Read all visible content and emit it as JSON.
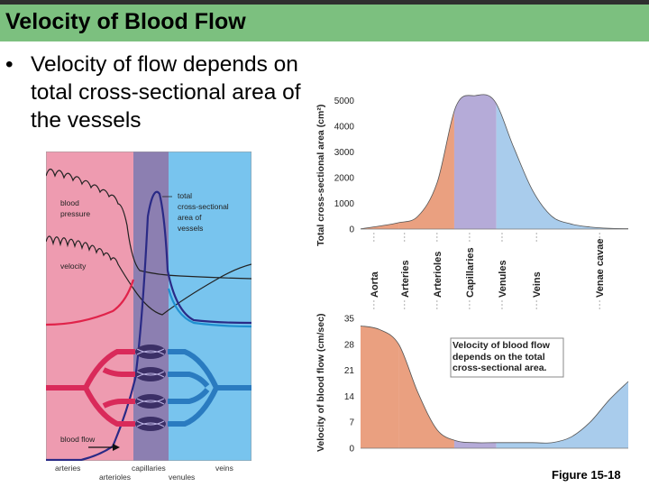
{
  "slide": {
    "title": "Velocity of Blood Flow",
    "bullet": "Velocity of flow depends on total cross-sectional area of the vessels",
    "figure_label": "Figure 15-18"
  },
  "left_diagram": {
    "labels": {
      "blood_pressure_1": "blood",
      "blood_pressure_2": "pressure",
      "velocity": "velocity",
      "tcsa_1": "total",
      "tcsa_2": "cross-sectional",
      "tcsa_3": "area of",
      "tcsa_4": "vessels",
      "blood_flow": "blood flow"
    },
    "bottom_labels": {
      "arteries": "arteries",
      "arterioles": "arterioles",
      "capillaries": "capillaries",
      "venules": "venules",
      "veins": "veins"
    },
    "colors": {
      "arterial": "#ee9bb0",
      "capillary": "#8c7fb1",
      "venous": "#78c4ee"
    }
  },
  "chart_data": [
    {
      "type": "area",
      "ylabel": "Total cross-sectional area (cm²)",
      "yticks": [
        "0",
        "1000",
        "2000",
        "3000",
        "4000",
        "5000"
      ],
      "ylim": [
        0,
        5200
      ],
      "categories": [
        "Aorta",
        "Arteries",
        "Arterioles",
        "Capillaries",
        "Venules",
        "Veins",
        "Venae cavae"
      ],
      "x": [
        0,
        0.5,
        1,
        1.5,
        2,
        2.5,
        3,
        3.5,
        4,
        4.5,
        5,
        5.5,
        6,
        6.5,
        7
      ],
      "values": [
        10,
        120,
        250,
        500,
        1800,
        4800,
        5200,
        5000,
        3200,
        1500,
        500,
        200,
        80,
        30,
        15
      ],
      "regions": [
        {
          "name": "arterial",
          "from": 0,
          "to": 1,
          "color": "#eaa080"
        },
        {
          "name": "arterioles",
          "from": 1,
          "to": 2.45,
          "color": "#eaa080"
        },
        {
          "name": "capillaries",
          "from": 2.45,
          "to": 3.55,
          "color": "#b5abd8"
        },
        {
          "name": "venous",
          "from": 3.55,
          "to": 7,
          "color": "#a9ccec"
        }
      ]
    },
    {
      "type": "area",
      "ylabel": "Velocity of blood flow (cm/sec)",
      "yticks": [
        "0",
        "7",
        "14",
        "21",
        "28",
        "35"
      ],
      "ylim": [
        0,
        36
      ],
      "categories": [
        "Aorta",
        "Arteries",
        "Arterioles",
        "Capillaries",
        "Venules",
        "Veins",
        "Venae cavae"
      ],
      "x": [
        0,
        0.5,
        1,
        1.5,
        2,
        2.5,
        3,
        3.5,
        4,
        4.5,
        5,
        5.5,
        6,
        6.5,
        7
      ],
      "values": [
        33,
        32,
        28,
        15,
        5,
        2,
        1.5,
        1.5,
        1.5,
        1.5,
        1.5,
        3,
        7,
        13,
        18
      ],
      "annotation": "Velocity of blood flow depends on the total cross-sectional area."
    }
  ]
}
